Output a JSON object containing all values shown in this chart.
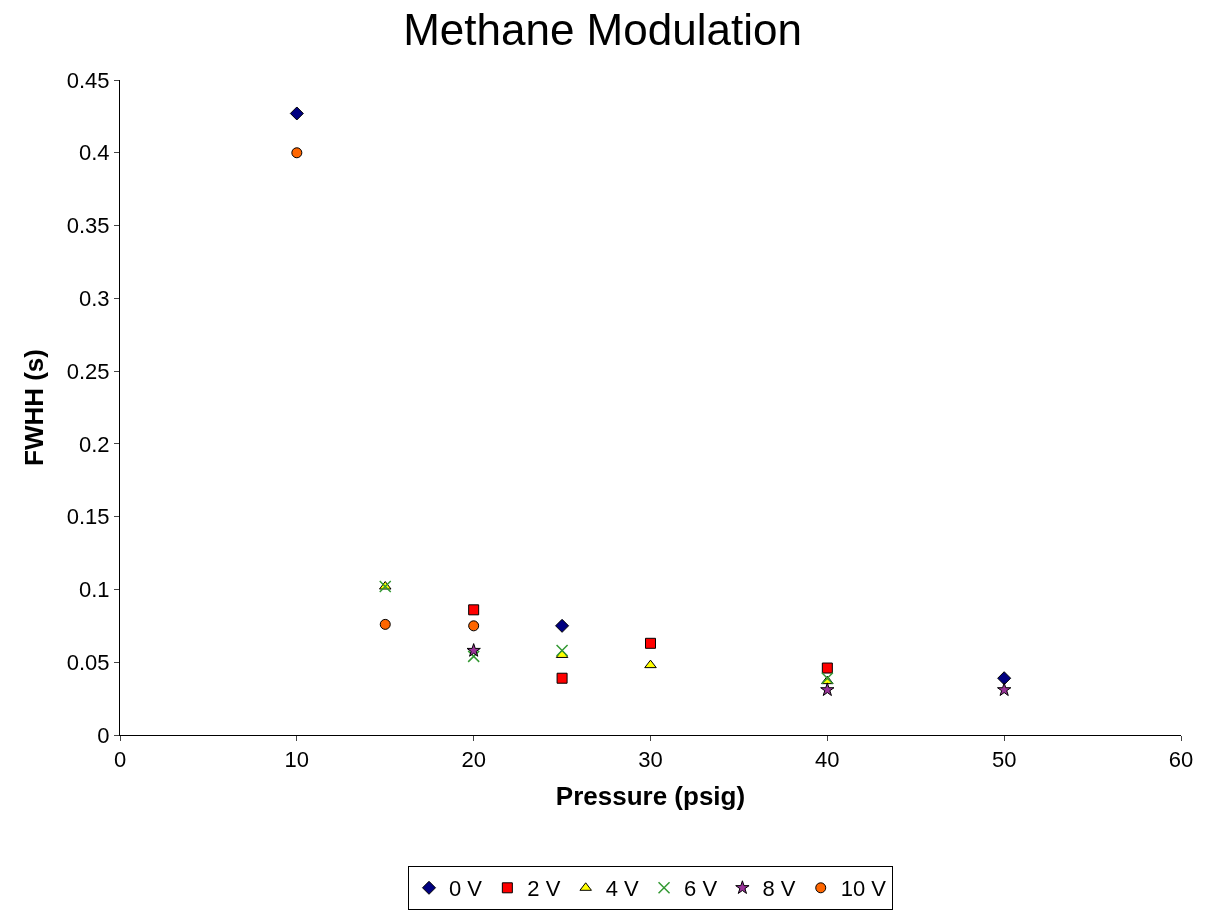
{
  "chart_data": {
    "type": "scatter",
    "title": "Methane Modulation",
    "xlabel": "Pressure (psig)",
    "ylabel": "FWHH (s)",
    "xlim": [
      0,
      60
    ],
    "xticks": [
      0,
      10,
      20,
      30,
      40,
      50,
      60
    ],
    "ylim": [
      0,
      0.45
    ],
    "yticks": [
      0,
      0.05,
      0.1,
      0.15,
      0.2,
      0.25,
      0.3,
      0.35,
      0.4,
      0.45
    ],
    "legend": "bottom",
    "series": [
      {
        "name": "0 V",
        "color": "#000080",
        "marker": "diamond",
        "x": [
          10,
          25,
          50
        ],
        "values": [
          0.427,
          0.075,
          0.039
        ]
      },
      {
        "name": "2 V",
        "color": "#ff0000",
        "marker": "square",
        "x": [
          20,
          25,
          30,
          40
        ],
        "values": [
          0.086,
          0.039,
          0.063,
          0.046
        ]
      },
      {
        "name": "4 V",
        "color": "#ffff00",
        "marker": "triangle",
        "x": [
          15,
          25,
          30,
          40
        ],
        "values": [
          0.102,
          0.055,
          0.048,
          0.037
        ]
      },
      {
        "name": "6 V",
        "color": "#339933",
        "marker": "cross",
        "x": [
          15,
          20,
          25,
          40
        ],
        "values": [
          0.102,
          0.054,
          0.058,
          0.039
        ]
      },
      {
        "name": "8 V",
        "color": "#993399",
        "marker": "star",
        "x": [
          20,
          40,
          50
        ],
        "values": [
          0.058,
          0.031,
          0.031
        ]
      },
      {
        "name": "10 V",
        "color": "#ff6600",
        "marker": "circle",
        "x": [
          10,
          15,
          20
        ],
        "values": [
          0.4,
          0.076,
          0.075
        ]
      }
    ]
  }
}
